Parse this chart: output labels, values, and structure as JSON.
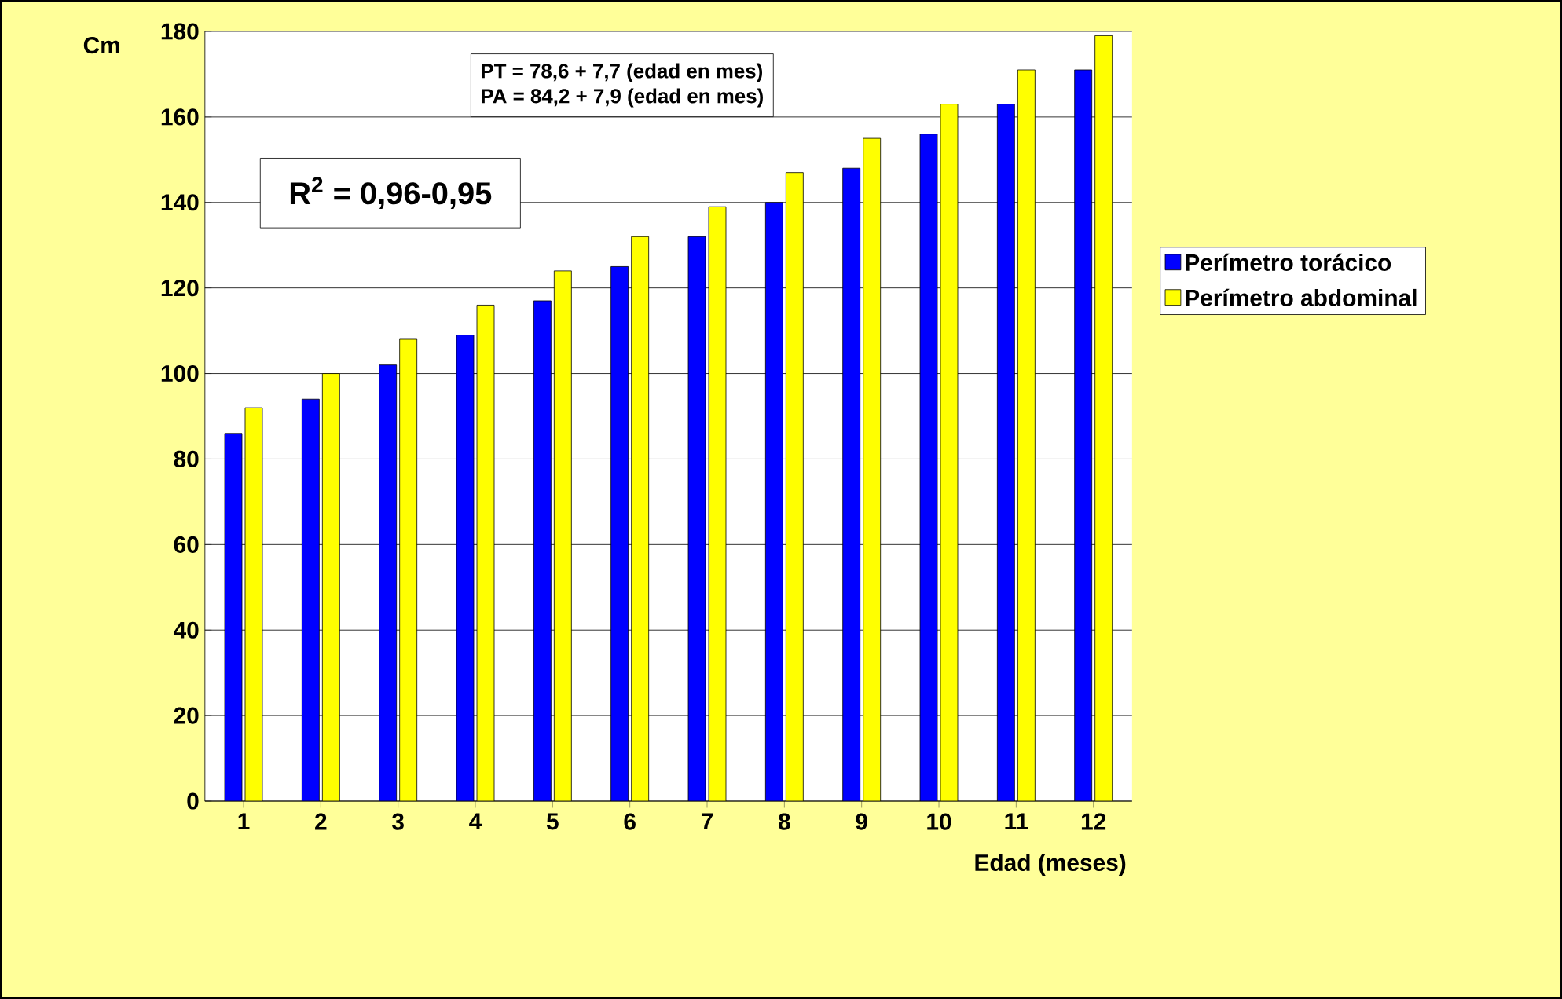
{
  "chart_data": {
    "type": "bar",
    "xlabel": "Edad (meses)",
    "ylabel": "Cm",
    "categories": [
      "1",
      "2",
      "3",
      "4",
      "5",
      "6",
      "7",
      "8",
      "9",
      "10",
      "11",
      "12"
    ],
    "series": [
      {
        "name": "Perímetro torácico",
        "color": "#0000ff",
        "values": [
          86,
          94,
          102,
          109,
          117,
          125,
          132,
          140,
          148,
          156,
          163,
          171
        ]
      },
      {
        "name": "Perímetro abdominal",
        "color": "#ffff00",
        "values": [
          92,
          100,
          108,
          116,
          124,
          132,
          139,
          147,
          155,
          163,
          171,
          179
        ]
      }
    ],
    "ylim": [
      0,
      180
    ],
    "yticks": [
      0,
      20,
      40,
      60,
      80,
      100,
      120,
      140,
      160,
      180
    ],
    "grid": "y",
    "legend": "right",
    "annotations": [
      "PT = 78,6 + 7,7 (edad en mes)",
      "PA = 84,2 + 7,9 (edad en mes)",
      "R$^{2}$ = 0,96-0,95"
    ]
  }
}
